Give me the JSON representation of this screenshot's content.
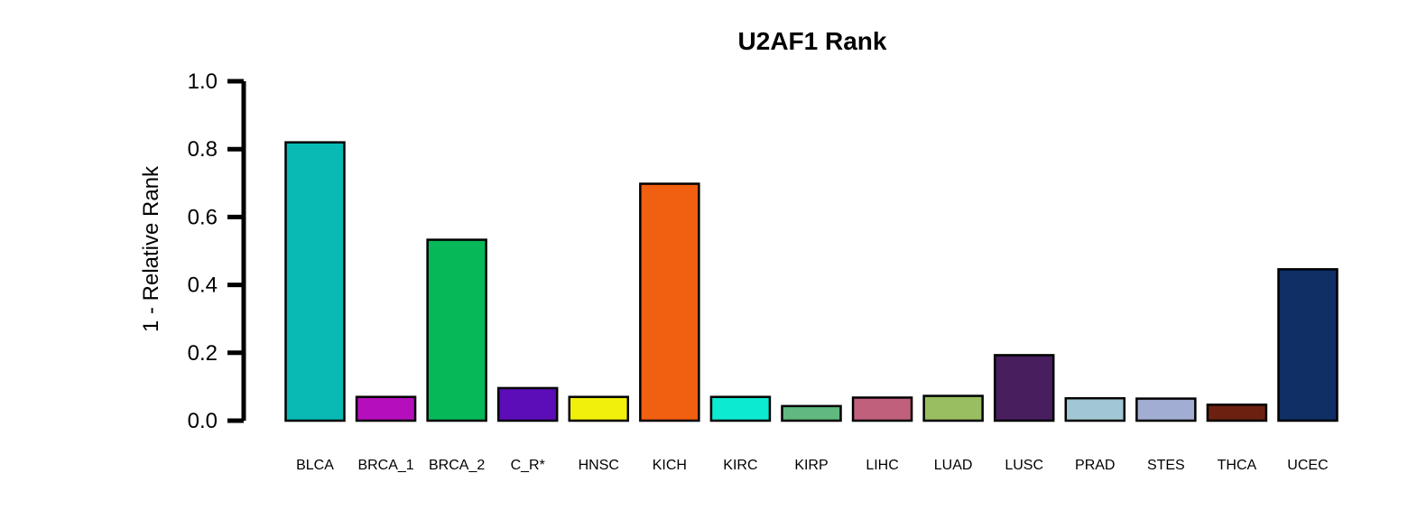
{
  "chart_data": {
    "type": "bar",
    "title": "U2AF1 Rank",
    "xlabel": "",
    "ylabel": "1 - Relative Rank",
    "ylim": [
      0,
      1
    ],
    "yticks": [
      "0.0",
      "0.2",
      "0.4",
      "0.6",
      "0.8",
      "1.0"
    ],
    "ytick_values": [
      0,
      0.2,
      0.4,
      0.6,
      0.8,
      1.0
    ],
    "grid": false,
    "legend": "none",
    "categories": [
      "BLCA",
      "BRCA_1",
      "BRCA_2",
      "C_R*",
      "HNSC",
      "KICH",
      "KIRC",
      "KIRP",
      "LIHC",
      "LUAD",
      "LUSC",
      "PRAD",
      "STES",
      "THCA",
      "UCEC"
    ],
    "values": [
      0.82,
      0.07,
      0.533,
      0.096,
      0.07,
      0.698,
      0.07,
      0.043,
      0.068,
      0.073,
      0.193,
      0.066,
      0.065,
      0.047,
      0.446
    ],
    "colors": [
      "#08B9B4",
      "#B50FBD",
      "#07B858",
      "#5C0DB8",
      "#F1F00C",
      "#F15F10",
      "#0DEAD2",
      "#61B980",
      "#C0607D",
      "#99BE61",
      "#481E5F",
      "#A1C7D6",
      "#A1ADD3",
      "#6C2110",
      "#0F2F65"
    ]
  }
}
